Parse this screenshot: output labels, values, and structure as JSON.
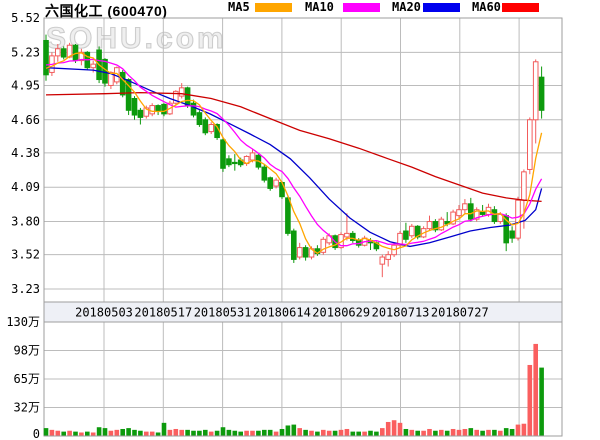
{
  "header": {
    "title": "六国化工 (600470)"
  },
  "watermark": "SOHU.com",
  "legend": [
    {
      "label": "MA5",
      "color": "#ffa600"
    },
    {
      "label": "MA10",
      "color": "#ff00ff"
    },
    {
      "label": "MA20",
      "color": "#0000ee"
    },
    {
      "label": "MA60",
      "color": "#ff0000"
    }
  ],
  "colors": {
    "up": "#f25c5c",
    "down": "#0d9a0d",
    "vol_up": "#fa5f5f",
    "vol_down": "#0d9a0d",
    "ma5": "#ffa600",
    "ma10": "#ff00ff",
    "ma20": "#0000cc",
    "ma60": "#cc0000",
    "grid": "#bcbcbc",
    "border": "#9e9e9e",
    "band_bg": "#eef0f6",
    "label": "#000000"
  },
  "chart_data": {
    "type": "candlestick+volume",
    "title": "六国化工 (600470)",
    "price_axis": {
      "min": 3.23,
      "max": 5.52,
      "tick_values": [
        5.52,
        5.23,
        4.95,
        4.66,
        4.38,
        4.09,
        3.8,
        3.52,
        3.23
      ],
      "tick_labels": [
        "5.52",
        "5.23",
        "4.95",
        "4.66",
        "4.38",
        "4.09",
        "3.80",
        "3.52",
        "3.23"
      ]
    },
    "volume_axis": {
      "max": 130,
      "unit": "万",
      "tick_values": [
        130,
        97.5,
        65,
        32.5,
        0
      ],
      "tick_labels": [
        "130万",
        "98万",
        "65万",
        "32万",
        "0"
      ]
    },
    "x_tick_labels": [
      "20180503",
      "20180517",
      "20180531",
      "20180614",
      "20180629",
      "20180713",
      "20180727"
    ],
    "grid": true,
    "legend_position": "top",
    "candles_ohlcv": [
      [
        5.33,
        5.38,
        4.99,
        5.04,
        9
      ],
      [
        5.06,
        5.23,
        5.03,
        5.2,
        7
      ],
      [
        5.2,
        5.3,
        5.15,
        5.26,
        6
      ],
      [
        5.26,
        5.28,
        5.17,
        5.19,
        5
      ],
      [
        5.19,
        5.31,
        5.18,
        5.29,
        6
      ],
      [
        5.29,
        5.3,
        5.14,
        5.16,
        5
      ],
      [
        5.16,
        5.26,
        5.12,
        5.23,
        4
      ],
      [
        5.23,
        5.24,
        5.08,
        5.1,
        5
      ],
      [
        5.1,
        5.16,
        5.06,
        5.13,
        4
      ],
      [
        5.25,
        5.28,
        4.97,
        5.0,
        10
      ],
      [
        5.17,
        5.18,
        4.94,
        4.97,
        9
      ],
      [
        4.95,
        5.07,
        4.92,
        5.06,
        6
      ],
      [
        4.98,
        5.11,
        4.96,
        5.1,
        7
      ],
      [
        5.06,
        5.08,
        4.85,
        4.87,
        8
      ],
      [
        5.0,
        5.01,
        4.7,
        4.74,
        9
      ],
      [
        4.84,
        4.86,
        4.66,
        4.7,
        7
      ],
      [
        4.74,
        4.76,
        4.62,
        4.68,
        6
      ],
      [
        4.69,
        4.78,
        4.67,
        4.76,
        5
      ],
      [
        4.71,
        4.8,
        4.69,
        4.78,
        5
      ],
      [
        4.78,
        4.79,
        4.7,
        4.73,
        4
      ],
      [
        4.79,
        4.8,
        4.69,
        4.71,
        15
      ],
      [
        4.71,
        4.82,
        4.7,
        4.8,
        7
      ],
      [
        4.8,
        4.91,
        4.78,
        4.9,
        8
      ],
      [
        4.86,
        4.97,
        4.84,
        4.93,
        7
      ],
      [
        4.93,
        4.94,
        4.76,
        4.78,
        7
      ],
      [
        4.8,
        4.83,
        4.68,
        4.7,
        6
      ],
      [
        4.72,
        4.74,
        4.6,
        4.62,
        6
      ],
      [
        4.66,
        4.68,
        4.53,
        4.55,
        7
      ],
      [
        4.56,
        4.64,
        4.54,
        4.62,
        5
      ],
      [
        4.62,
        4.63,
        4.49,
        4.51,
        6
      ],
      [
        4.49,
        4.5,
        4.22,
        4.25,
        10
      ],
      [
        4.33,
        4.36,
        4.26,
        4.28,
        7
      ],
      [
        4.3,
        4.37,
        4.23,
        4.29,
        6
      ],
      [
        4.32,
        4.34,
        4.26,
        4.28,
        5
      ],
      [
        4.29,
        4.36,
        4.27,
        4.35,
        6
      ],
      [
        4.32,
        4.41,
        4.3,
        4.38,
        6
      ],
      [
        4.36,
        4.37,
        4.24,
        4.26,
        6
      ],
      [
        4.26,
        4.28,
        4.13,
        4.15,
        7
      ],
      [
        4.17,
        4.18,
        4.06,
        4.08,
        7
      ],
      [
        4.1,
        4.17,
        4.08,
        4.15,
        5
      ],
      [
        4.13,
        4.14,
        3.99,
        4.01,
        8
      ],
      [
        4.0,
        4.02,
        3.68,
        3.7,
        12
      ],
      [
        3.72,
        3.74,
        3.45,
        3.48,
        13
      ],
      [
        3.5,
        3.62,
        3.48,
        3.58,
        9
      ],
      [
        3.58,
        3.6,
        3.47,
        3.5,
        7
      ],
      [
        3.5,
        3.59,
        3.48,
        3.57,
        6
      ],
      [
        3.57,
        3.6,
        3.51,
        3.53,
        5
      ],
      [
        3.54,
        3.67,
        3.52,
        3.65,
        7
      ],
      [
        3.62,
        3.7,
        3.6,
        3.68,
        6
      ],
      [
        3.68,
        3.69,
        3.56,
        3.58,
        6
      ],
      [
        3.58,
        3.71,
        3.57,
        3.69,
        7
      ],
      [
        3.67,
        3.87,
        3.64,
        3.7,
        8
      ],
      [
        3.7,
        3.72,
        3.62,
        3.64,
        5
      ],
      [
        3.64,
        3.66,
        3.58,
        3.6,
        5
      ],
      [
        3.6,
        3.68,
        3.59,
        3.66,
        5
      ],
      [
        3.64,
        3.66,
        3.56,
        3.62,
        6
      ],
      [
        3.62,
        3.63,
        3.55,
        3.57,
        5
      ],
      [
        3.44,
        3.52,
        3.33,
        3.5,
        9
      ],
      [
        3.48,
        3.55,
        3.42,
        3.52,
        16
      ],
      [
        3.52,
        3.62,
        3.5,
        3.6,
        18
      ],
      [
        3.6,
        3.72,
        3.58,
        3.7,
        15
      ],
      [
        3.72,
        3.79,
        3.62,
        3.65,
        8
      ],
      [
        3.68,
        3.78,
        3.66,
        3.76,
        7
      ],
      [
        3.76,
        3.77,
        3.65,
        3.67,
        6
      ],
      [
        3.67,
        3.76,
        3.66,
        3.74,
        6
      ],
      [
        3.74,
        3.85,
        3.72,
        3.8,
        8
      ],
      [
        3.8,
        3.82,
        3.71,
        3.73,
        6
      ],
      [
        3.73,
        3.84,
        3.72,
        3.82,
        7
      ],
      [
        3.8,
        3.88,
        3.76,
        3.78,
        6
      ],
      [
        3.78,
        3.9,
        3.77,
        3.88,
        8
      ],
      [
        3.85,
        3.94,
        3.83,
        3.9,
        7
      ],
      [
        3.9,
        3.99,
        3.87,
        3.95,
        8
      ],
      [
        3.95,
        4.0,
        3.8,
        3.82,
        9
      ],
      [
        3.82,
        3.92,
        3.8,
        3.9,
        7
      ],
      [
        3.88,
        3.94,
        3.84,
        3.86,
        6
      ],
      [
        3.86,
        3.95,
        3.84,
        3.92,
        7
      ],
      [
        3.9,
        3.93,
        3.78,
        3.8,
        7
      ],
      [
        3.8,
        3.88,
        3.78,
        3.86,
        6
      ],
      [
        3.85,
        3.87,
        3.55,
        3.62,
        9
      ],
      [
        3.72,
        3.76,
        3.62,
        3.66,
        8
      ],
      [
        3.66,
        4.01,
        3.64,
        3.98,
        13
      ],
      [
        3.98,
        4.24,
        3.74,
        4.22,
        14
      ],
      [
        4.24,
        4.68,
        4.2,
        4.66,
        81
      ],
      [
        4.66,
        5.17,
        4.46,
        5.15,
        105
      ],
      [
        5.02,
        5.11,
        4.67,
        4.74,
        78
      ]
    ],
    "pre_chart_closes_for_ma": [
      5.15,
      5.15,
      5.15,
      5.15,
      5.15,
      5.12,
      5.12,
      5.1,
      5.1
    ],
    "ma_lines_traced": [
      {
        "name": "MA20",
        "color_key": "ma20",
        "points": [
          [
            0,
            5.1
          ],
          [
            8,
            5.08
          ],
          [
            11,
            5.05
          ],
          [
            14,
            4.99
          ],
          [
            17.6,
            4.91
          ],
          [
            21,
            4.84
          ],
          [
            24.4,
            4.78
          ],
          [
            27.8,
            4.71
          ],
          [
            31,
            4.63
          ],
          [
            34.6,
            4.54
          ],
          [
            38,
            4.45
          ],
          [
            41.4,
            4.33
          ],
          [
            44.7,
            4.17
          ],
          [
            48,
            3.99
          ],
          [
            51.5,
            3.83
          ],
          [
            54.9,
            3.71
          ],
          [
            58.3,
            3.63
          ],
          [
            61.7,
            3.59
          ],
          [
            65,
            3.62
          ],
          [
            68.5,
            3.67
          ],
          [
            71.9,
            3.72
          ],
          [
            75.3,
            3.75
          ],
          [
            78.6,
            3.77
          ],
          [
            81.2,
            3.81
          ],
          [
            83,
            3.9
          ],
          [
            84,
            4.08
          ]
        ]
      },
      {
        "name": "MA60",
        "color_key": "ma60",
        "points": [
          [
            0,
            4.87
          ],
          [
            10,
            4.88
          ],
          [
            16,
            4.89
          ],
          [
            23,
            4.88
          ],
          [
            28,
            4.84
          ],
          [
            33,
            4.77
          ],
          [
            38,
            4.67
          ],
          [
            43,
            4.57
          ],
          [
            48,
            4.5
          ],
          [
            53,
            4.42
          ],
          [
            58,
            4.33
          ],
          [
            62,
            4.26
          ],
          [
            66,
            4.18
          ],
          [
            70,
            4.11
          ],
          [
            74,
            4.04
          ],
          [
            78,
            4.0
          ],
          [
            81,
            3.98
          ],
          [
            84,
            3.97
          ]
        ]
      }
    ]
  }
}
